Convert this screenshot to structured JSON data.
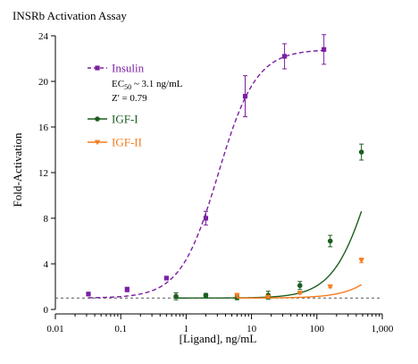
{
  "chart_data": {
    "type": "scatter",
    "title": "INSRb Activation Assay",
    "xlabel": "[Ligand], ng/mL",
    "ylabel": "Fold-Activation",
    "xscale": "log",
    "xlim": [
      0.01,
      1000
    ],
    "ylim": [
      0,
      24
    ],
    "x_ticks": [
      0.01,
      0.1,
      1,
      10,
      100,
      1000
    ],
    "x_tick_labels": [
      "0.01",
      "0.1",
      "1",
      "10",
      "100",
      "1,000"
    ],
    "y_ticks": [
      0,
      4,
      8,
      12,
      16,
      20,
      24
    ],
    "y_tick_labels": [
      "0",
      "4",
      "8",
      "12",
      "16",
      "20",
      "24"
    ],
    "baseline": 1.0,
    "grid": false,
    "legend_position": "top-left",
    "annotations": {
      "ec50": "EC50 ~ 3.1 ng/mL",
      "zprime": "Z' = 0.79"
    },
    "series": [
      {
        "name": "Insulin",
        "color": "#7B1FA2",
        "marker": "square",
        "fit": "dashed",
        "fit_params": {
          "bottom": 1.0,
          "top": 22.8,
          "ec50": 3.1,
          "hill": 1.5
        },
        "points": [
          {
            "x": 0.032,
            "y": 1.35,
            "err": 0.15
          },
          {
            "x": 0.125,
            "y": 1.75,
            "err": 0.2
          },
          {
            "x": 0.5,
            "y": 2.75,
            "err": 0.15
          },
          {
            "x": 2.0,
            "y": 8.0,
            "err": 0.6
          },
          {
            "x": 8.0,
            "y": 18.7,
            "err": 1.8
          },
          {
            "x": 32.0,
            "y": 22.2,
            "err": 1.1
          },
          {
            "x": 128.0,
            "y": 22.8,
            "err": 1.3
          }
        ]
      },
      {
        "name": "IGF-I",
        "color": "#1B5E20",
        "marker": "circle",
        "fit": "solid",
        "fit_params": {
          "bottom": 1.0,
          "top": 22.0,
          "ec50": 700,
          "hill": 1.5
        },
        "points": [
          {
            "x": 0.7,
            "y": 1.15,
            "err": 0.3
          },
          {
            "x": 2.0,
            "y": 1.25,
            "err": 0.15
          },
          {
            "x": 6.0,
            "y": 1.05,
            "err": 0.2
          },
          {
            "x": 18.0,
            "y": 1.25,
            "err": 0.35
          },
          {
            "x": 55.0,
            "y": 2.1,
            "err": 0.35
          },
          {
            "x": 160.0,
            "y": 6.0,
            "err": 0.5
          },
          {
            "x": 480.0,
            "y": 13.8,
            "err": 0.7
          }
        ]
      },
      {
        "name": "IGF-II",
        "color": "#F57C1F",
        "marker": "triangle-down",
        "fit": "solid",
        "fit_params": {
          "bottom": 1.0,
          "top": 14.0,
          "ec50": 2500,
          "hill": 1.4
        },
        "points": [
          {
            "x": 6.0,
            "y": 1.25,
            "err": 0.15
          },
          {
            "x": 18.0,
            "y": 1.1,
            "err": 0.1
          },
          {
            "x": 55.0,
            "y": 1.45,
            "err": 0.1
          },
          {
            "x": 160.0,
            "y": 2.0,
            "err": 0.1
          },
          {
            "x": 480.0,
            "y": 4.3,
            "err": 0.2
          }
        ]
      }
    ]
  }
}
